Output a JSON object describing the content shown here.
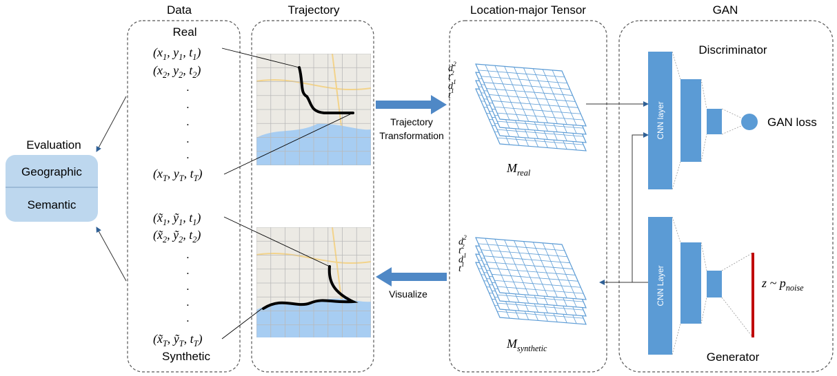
{
  "columns": {
    "data": "Data",
    "trajectory": "Trajectory",
    "tensor": "Location-major Tensor",
    "gan": "GAN"
  },
  "data": {
    "real": "Real",
    "synthetic": "Synthetic",
    "dot": ".",
    "real_points": [
      [
        "(x",
        "1",
        ", y",
        "1",
        ", t",
        "1",
        ")"
      ],
      [
        "(x",
        "2",
        ", y",
        "2",
        ", t",
        "2",
        ")"
      ],
      [
        "(x",
        "T",
        ", y",
        "T",
        ", t",
        "T",
        ")"
      ]
    ],
    "synthetic_points": [
      [
        "(x̃",
        "1",
        ", ỹ",
        "1",
        ", t",
        "1",
        ")"
      ],
      [
        "(x̃",
        "2",
        ", ỹ",
        "2",
        ", t",
        "2",
        ")"
      ],
      [
        "(x̃",
        "T",
        ", ỹ",
        "T",
        ", t",
        "T",
        ")"
      ]
    ]
  },
  "evaluation": {
    "title": "Evaluation",
    "items": [
      "Geographic",
      "Semantic"
    ]
  },
  "arrows": {
    "transform": [
      "Trajectory",
      "Transformation"
    ],
    "visualize": "Visualize"
  },
  "tensor": {
    "layer_labels": [
      [
        "d",
        "2"
      ],
      [
        "t",
        "2"
      ],
      [
        "d",
        "1"
      ],
      [
        "t",
        "1"
      ]
    ],
    "real": [
      "M",
      "real"
    ],
    "synthetic": [
      "M",
      "synthetic"
    ]
  },
  "gan": {
    "discriminator": "Discriminator",
    "generator": "Generator",
    "loss": "GAN loss",
    "cnn_d": "CNN layer",
    "cnn_g": "CNN Layer",
    "noise": [
      "z ~ p",
      "noise"
    ]
  }
}
